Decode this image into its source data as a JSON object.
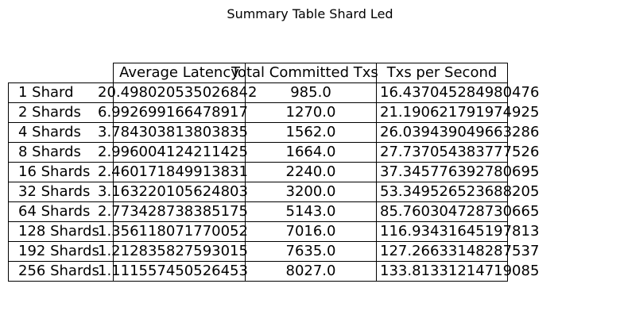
{
  "chart_data": {
    "type": "table",
    "title": "Summary Table Shard Led",
    "columns": [
      "Average Latency",
      "Total Committed Txs",
      "Txs per Second"
    ],
    "rows": [
      {
        "label": "1 Shard",
        "values": [
          "20.498020535026842",
          "985.0",
          "16.437045284980476"
        ]
      },
      {
        "label": "2 Shards",
        "values": [
          "6.992699166478917",
          "1270.0",
          "21.190621791974925"
        ]
      },
      {
        "label": "4 Shards",
        "values": [
          "3.784303813803835",
          "1562.0",
          "26.039439049663286"
        ]
      },
      {
        "label": "8 Shards",
        "values": [
          "2.996004124211425",
          "1664.0",
          "27.737054383777526"
        ]
      },
      {
        "label": "16 Shards",
        "values": [
          "2.460171849913831",
          "2240.0",
          "37.345776392780695"
        ]
      },
      {
        "label": "32 Shards",
        "values": [
          "3.163220105624803",
          "3200.0",
          "53.349526523688205"
        ]
      },
      {
        "label": "64 Shards",
        "values": [
          "2.773428738385175",
          "5143.0",
          "85.760304728730665"
        ]
      },
      {
        "label": "128 Shards",
        "values": [
          "1.356118071770052",
          "7016.0",
          "116.93431645197813"
        ]
      },
      {
        "label": "192 Shards",
        "values": [
          "1.212835827593015",
          "7635.0",
          "127.26633148287537"
        ]
      },
      {
        "label": "256 Shards",
        "values": [
          "1.111557450526453",
          "8027.0",
          "133.81331214719085"
        ]
      }
    ]
  }
}
